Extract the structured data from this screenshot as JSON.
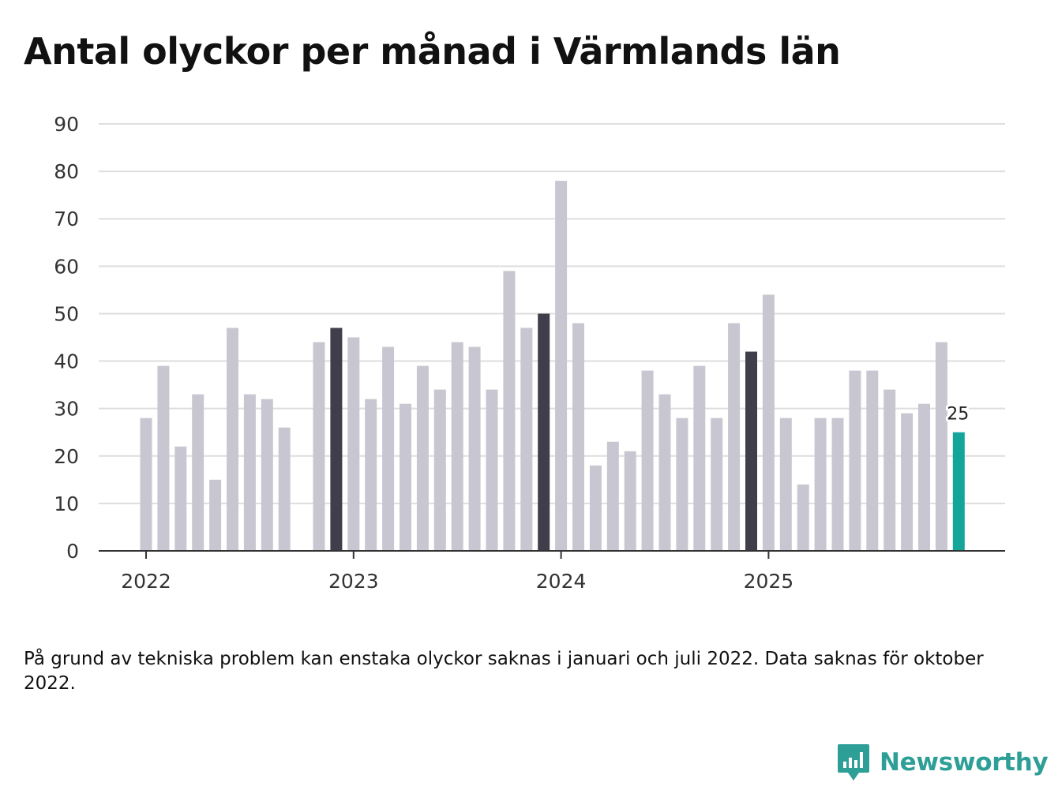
{
  "title": "Antal olyckor per månad i Värmlands län",
  "note": "På grund av tekniska problem kan enstaka olyckor saknas i januari och juli 2022. Data saknas för oktober 2022.",
  "brand": {
    "name": "Newsworthy",
    "icon": "newsworthy-chart-bubble-icon",
    "color": "#2d9f97"
  },
  "colors": {
    "normal": "#c8c7d1",
    "december": "#3f3f4b",
    "latest": "#13a59a",
    "grid": "#dedede",
    "axis": "#333333"
  },
  "chart_data": {
    "type": "bar",
    "title": "Antal olyckor per månad i Värmlands län",
    "xlabel": "",
    "ylabel": "",
    "ylim": [
      0,
      90
    ],
    "yticks": [
      0,
      10,
      20,
      30,
      40,
      50,
      60,
      70,
      80,
      90
    ],
    "xticks": [
      {
        "label": "2022",
        "index": 0
      },
      {
        "label": "2023",
        "index": 12
      },
      {
        "label": "2024",
        "index": 24
      },
      {
        "label": "2025",
        "index": 36
      }
    ],
    "grid": true,
    "categories": [
      "2022-01",
      "2022-02",
      "2022-03",
      "2022-04",
      "2022-05",
      "2022-06",
      "2022-07",
      "2022-08",
      "2022-09",
      "2022-10",
      "2022-11",
      "2022-12",
      "2023-01",
      "2023-02",
      "2023-03",
      "2023-04",
      "2023-05",
      "2023-06",
      "2023-07",
      "2023-08",
      "2023-09",
      "2023-10",
      "2023-11",
      "2023-12",
      "2024-01",
      "2024-02",
      "2024-03",
      "2024-04",
      "2024-05",
      "2024-06",
      "2024-07",
      "2024-08",
      "2024-09",
      "2024-10",
      "2024-11",
      "2024-12",
      "2025-01",
      "2025-02",
      "2025-03",
      "2025-04",
      "2025-05",
      "2025-06",
      "2025-07",
      "2025-08",
      "2025-09",
      "2025-10",
      "2025-11",
      "2025-12"
    ],
    "values": [
      28,
      39,
      22,
      33,
      15,
      47,
      33,
      32,
      26,
      null,
      44,
      47,
      45,
      32,
      43,
      31,
      39,
      34,
      44,
      43,
      34,
      59,
      47,
      50,
      78,
      48,
      18,
      23,
      21,
      38,
      33,
      28,
      39,
      28,
      48,
      42,
      54,
      28,
      14,
      28,
      28,
      38,
      38,
      34,
      29,
      31,
      44,
      25
    ],
    "highlight_december": true,
    "annotation": {
      "index": 47,
      "label": "25"
    }
  }
}
